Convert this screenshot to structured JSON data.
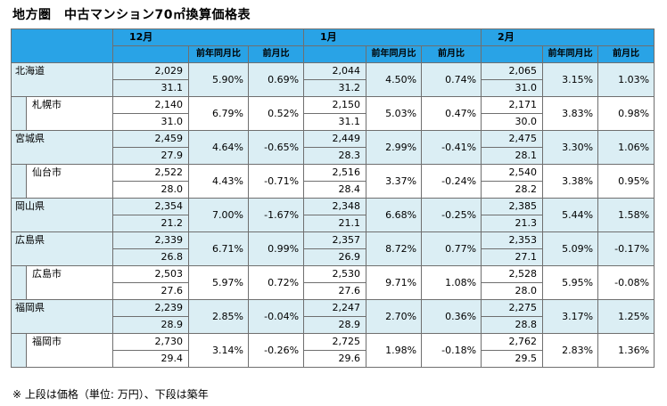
{
  "title": "地方圏　中古マンション70㎡換算価格表",
  "months": [
    {
      "label": "12月",
      "yoy_label": "前年同月比",
      "mom_label": "前月比"
    },
    {
      "label": "1月",
      "yoy_label": "前年同月比",
      "mom_label": "前月比"
    },
    {
      "label": "2月",
      "yoy_label": "前年同月比",
      "mom_label": "前月比"
    }
  ],
  "rows": [
    {
      "name": "北海道",
      "type": "pref",
      "data": [
        {
          "price": "2,029",
          "age": "31.1",
          "yoy": "5.90%",
          "mom": "0.69%"
        },
        {
          "price": "2,044",
          "age": "31.2",
          "yoy": "4.50%",
          "mom": "0.74%"
        },
        {
          "price": "2,065",
          "age": "31.0",
          "yoy": "3.15%",
          "mom": "1.03%"
        }
      ]
    },
    {
      "name": "札幌市",
      "type": "city",
      "data": [
        {
          "price": "2,140",
          "age": "31.0",
          "yoy": "6.79%",
          "mom": "0.52%"
        },
        {
          "price": "2,150",
          "age": "31.1",
          "yoy": "5.03%",
          "mom": "0.47%"
        },
        {
          "price": "2,171",
          "age": "30.0",
          "yoy": "3.83%",
          "mom": "0.98%"
        }
      ]
    },
    {
      "name": "宮城県",
      "type": "pref",
      "data": [
        {
          "price": "2,459",
          "age": "27.9",
          "yoy": "4.64%",
          "mom": "-0.65%"
        },
        {
          "price": "2,449",
          "age": "28.3",
          "yoy": "2.99%",
          "mom": "-0.41%"
        },
        {
          "price": "2,475",
          "age": "28.1",
          "yoy": "3.30%",
          "mom": "1.06%"
        }
      ]
    },
    {
      "name": "仙台市",
      "type": "city",
      "data": [
        {
          "price": "2,522",
          "age": "28.0",
          "yoy": "4.43%",
          "mom": "-0.71%"
        },
        {
          "price": "2,516",
          "age": "28.4",
          "yoy": "3.37%",
          "mom": "-0.24%"
        },
        {
          "price": "2,540",
          "age": "28.2",
          "yoy": "3.38%",
          "mom": "0.95%"
        }
      ]
    },
    {
      "name": "岡山県",
      "type": "pref",
      "data": [
        {
          "price": "2,354",
          "age": "21.2",
          "yoy": "7.00%",
          "mom": "-1.67%"
        },
        {
          "price": "2,348",
          "age": "21.1",
          "yoy": "6.68%",
          "mom": "-0.25%"
        },
        {
          "price": "2,385",
          "age": "21.3",
          "yoy": "5.44%",
          "mom": "1.58%"
        }
      ]
    },
    {
      "name": "広島県",
      "type": "pref",
      "data": [
        {
          "price": "2,339",
          "age": "26.8",
          "yoy": "6.71%",
          "mom": "0.99%"
        },
        {
          "price": "2,357",
          "age": "26.9",
          "yoy": "8.72%",
          "mom": "0.77%"
        },
        {
          "price": "2,353",
          "age": "27.1",
          "yoy": "5.09%",
          "mom": "-0.17%"
        }
      ]
    },
    {
      "name": "広島市",
      "type": "city",
      "data": [
        {
          "price": "2,503",
          "age": "27.6",
          "yoy": "5.97%",
          "mom": "0.72%"
        },
        {
          "price": "2,530",
          "age": "27.6",
          "yoy": "9.71%",
          "mom": "1.08%"
        },
        {
          "price": "2,528",
          "age": "28.0",
          "yoy": "5.95%",
          "mom": "-0.08%"
        }
      ]
    },
    {
      "name": "福岡県",
      "type": "pref",
      "data": [
        {
          "price": "2,239",
          "age": "28.9",
          "yoy": "2.85%",
          "mom": "-0.04%"
        },
        {
          "price": "2,247",
          "age": "28.9",
          "yoy": "2.70%",
          "mom": "0.36%"
        },
        {
          "price": "2,275",
          "age": "28.8",
          "yoy": "3.17%",
          "mom": "1.25%"
        }
      ]
    },
    {
      "name": "福岡市",
      "type": "city",
      "data": [
        {
          "price": "2,730",
          "age": "29.4",
          "yoy": "3.14%",
          "mom": "-0.26%"
        },
        {
          "price": "2,725",
          "age": "29.6",
          "yoy": "1.98%",
          "mom": "-0.18%"
        },
        {
          "price": "2,762",
          "age": "29.5",
          "yoy": "2.83%",
          "mom": "1.36%"
        }
      ]
    }
  ],
  "note": "※ 上段は価格（単位: 万円）、下段は築年"
}
